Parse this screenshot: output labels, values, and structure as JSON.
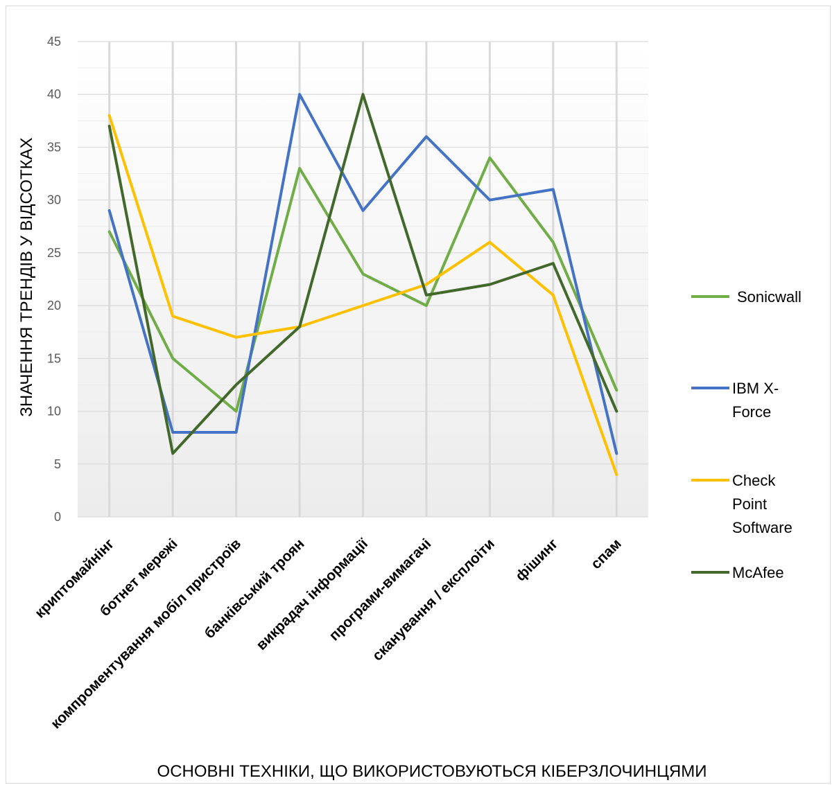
{
  "chart_data": {
    "type": "line",
    "title": "",
    "xlabel": "ОСНОВНІ ТЕХНІКИ, ЩО ВИКОРИСТОВУЮТЬСЯ КІБЕРЗЛОЧИНЦЯМИ",
    "ylabel": "ЗНАЧЕННЯ ТРЕНДІВ У ВІДСОТКАХ",
    "ylim": [
      0,
      45
    ],
    "yticks": [
      0,
      5,
      10,
      15,
      20,
      25,
      30,
      35,
      40,
      45
    ],
    "grid": true,
    "legend": "right",
    "categories": [
      "криптомайнінг",
      "ботнет мережі",
      "компроментування мобіл пристроїв",
      "банківський троян",
      "викрадач інформації",
      "програми-вимагачі",
      "сканування / експлоіти",
      "фішинг",
      "спам"
    ],
    "series": [
      {
        "name": "Sonicwall",
        "legend_lines": [
          "Sonicwall"
        ],
        "color": "#70ad47",
        "values": [
          27,
          15,
          10,
          33,
          23,
          20,
          34,
          26,
          12
        ]
      },
      {
        "name": "IBM X-Force",
        "legend_lines": [
          "IBM X-",
          "Force"
        ],
        "color": "#4472c4",
        "values": [
          29,
          8,
          8,
          40,
          29,
          36,
          30,
          31,
          6
        ]
      },
      {
        "name": "Check Point Software",
        "legend_lines": [
          "Check",
          "Point",
          "Software"
        ],
        "color": "#ffc000",
        "values": [
          38,
          19,
          17,
          18,
          20,
          22,
          26,
          21,
          4
        ]
      },
      {
        "name": "McAfee",
        "legend_lines": [
          "McAfee"
        ],
        "color": "#43682b",
        "values": [
          37,
          6,
          12.5,
          18,
          40,
          21,
          22,
          24,
          10
        ]
      }
    ]
  }
}
